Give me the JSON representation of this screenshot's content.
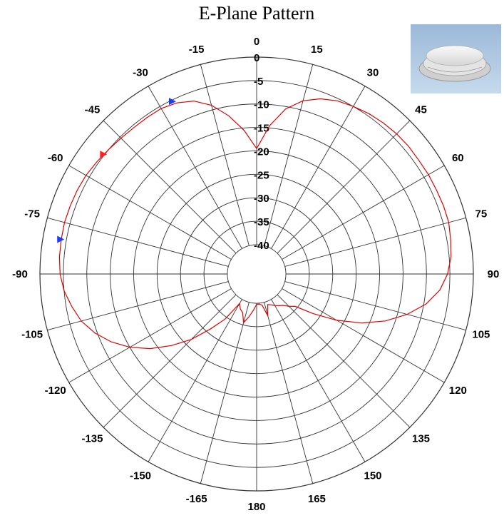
{
  "chart_data": {
    "type": "polar-line",
    "title": "E-Plane Pattern",
    "angle_unit": "degrees",
    "angle_ticks": [
      0,
      15,
      30,
      45,
      60,
      75,
      90,
      105,
      120,
      135,
      150,
      165,
      180,
      -165,
      -150,
      -135,
      -120,
      -105,
      -90,
      -75,
      -60,
      -45,
      -30,
      -15
    ],
    "radial_ticks": [
      0,
      -5,
      -10,
      -15,
      -20,
      -25,
      -30,
      -35,
      -40
    ],
    "radial_range": [
      -40,
      0
    ],
    "grid": true,
    "series": [
      {
        "color": "#e00000",
        "angles": [
          0,
          5,
          10,
          15,
          20,
          25,
          30,
          35,
          40,
          45,
          50,
          55,
          60,
          65,
          70,
          75,
          80,
          85,
          90,
          95,
          100,
          105,
          110,
          115,
          120,
          125,
          130,
          135,
          140,
          145,
          150,
          155,
          160,
          165,
          170,
          175,
          180,
          185,
          190,
          195,
          200,
          205,
          210,
          215,
          220,
          225,
          230,
          235,
          240,
          245,
          250,
          255,
          260,
          265,
          270,
          275,
          280,
          285,
          290,
          295,
          300,
          305,
          310,
          315,
          320,
          325,
          330,
          335,
          340,
          345,
          350,
          355,
          360
        ],
        "gain_db": [
          -19.5,
          -14.5,
          -10.5,
          -8.0,
          -6.5,
          -5.5,
          -5.0,
          -4.5,
          -4.2,
          -4.0,
          -3.9,
          -4.0,
          -3.9,
          -3.9,
          -3.8,
          -3.8,
          -4.2,
          -4.6,
          -5.5,
          -7.0,
          -9.5,
          -13.0,
          -17.0,
          -21.5,
          -26.5,
          -31.5,
          -35.5,
          -36.5,
          -37.5,
          -38.0,
          -38.5,
          -39.0,
          -39.3,
          -37.0,
          -39.5,
          -39.8,
          -39.8,
          -38.5,
          -37.0,
          -35.5,
          -37.5,
          -38.0,
          -39.0,
          -34.5,
          -31.0,
          -26.5,
          -22.5,
          -18.5,
          -15.0,
          -12.0,
          -9.5,
          -7.5,
          -6.2,
          -5.0,
          -4.3,
          -4.0,
          -3.9,
          -3.8,
          -3.9,
          -4.0,
          -4.2,
          -4.6,
          -5.0,
          -5.3,
          -5.5,
          -5.5,
          -5.5,
          -6.0,
          -7.0,
          -9.0,
          -12.0,
          -15.5,
          -19.5
        ]
      }
    ],
    "markers": [
      {
        "angle": -26,
        "gain_db": -5.3,
        "color": "#1a3cff"
      },
      {
        "angle": -52,
        "gain_db": -4.8,
        "color": "#ff2020"
      },
      {
        "angle": -80,
        "gain_db": -3.8,
        "color": "#1a3cff"
      }
    ]
  },
  "photo": {
    "subject": "white-dome-antenna",
    "background": "#a9c6e0"
  }
}
